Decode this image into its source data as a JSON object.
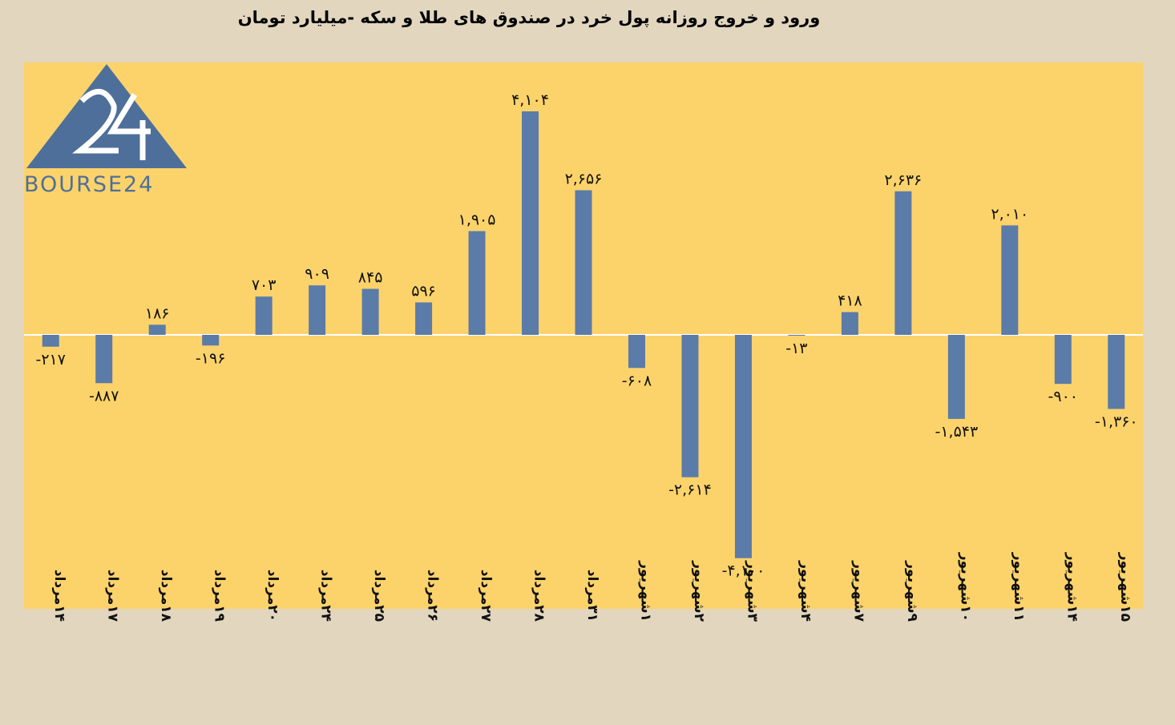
{
  "chart_data": {
    "type": "bar",
    "title": "ورود و خروج روزانه پول خرد در صندوق های طلا و سکه -میلیارد تومان",
    "categories": [
      "۱۴مرداد",
      "۱۷مرداد",
      "۱۸مرداد",
      "۱۹مرداد",
      "۲۰مرداد",
      "۲۴مرداد",
      "۲۵مرداد",
      "۲۶مرداد",
      "۲۷مرداد",
      "۲۸مرداد",
      "۳۱مرداد",
      "۱شهریور",
      "۲شهریور",
      "۳شهریور",
      "۴شهریور",
      "۷شهریور",
      "۹شهریور",
      "۱۰شهریور",
      "۱۱شهریور",
      "۱۴شهریور",
      "۱۵شهریور"
    ],
    "values": [
      -217,
      -887,
      186,
      -196,
      703,
      909,
      845,
      596,
      1905,
      4104,
      2656,
      -608,
      -2614,
      -4100,
      -13,
      418,
      2636,
      -1543,
      2010,
      -900,
      -1360
    ],
    "value_labels": [
      "-۲۱۷",
      "-۸۸۷",
      "۱۸۶",
      "-۱۹۶",
      "۷۰۳",
      "۹۰۹",
      "۸۴۵",
      "۵۹۶",
      "۱,۹۰۵",
      "۴,۱۰۴",
      "۲,۶۵۶",
      "-۶۰۸",
      "-۲,۶۱۴",
      "-۴,۱۰۰",
      "-۱۳",
      "۴۱۸",
      "۲,۶۳۶",
      "-۱,۵۴۳",
      "۲,۰۱۰",
      "-۹۰۰",
      "-۱,۳۶۰"
    ],
    "ylim": [
      -5000,
      5000
    ],
    "grid": false,
    "bar_color": "#5b7ba8",
    "plot_background": "#fcd36b",
    "page_background": "#e2d6bf"
  },
  "logo": {
    "text": "BOURSE24",
    "mark": "24",
    "color": "#4e6f9a"
  }
}
